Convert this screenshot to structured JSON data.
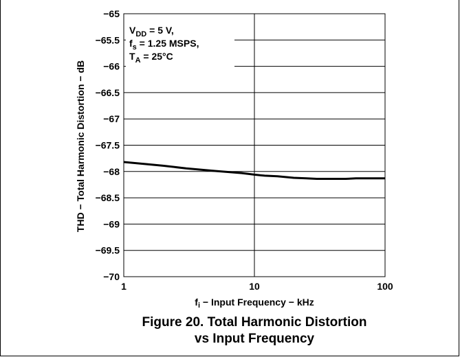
{
  "figure_caption": {
    "line1": "Figure 20. Total Harmonic Distortion",
    "line2": "vs Input Frequency"
  },
  "chart_data": {
    "type": "line",
    "xscale": "log",
    "xlim": [
      1,
      100
    ],
    "ylim": [
      -70,
      -65
    ],
    "xticks": [
      1,
      10,
      100
    ],
    "xtick_labels": [
      "1",
      "10",
      "100"
    ],
    "yticks": [
      -65,
      -65.5,
      -66,
      -66.5,
      -67,
      -67.5,
      -68,
      -68.5,
      -69,
      -69.5,
      -70
    ],
    "ytick_labels": [
      "−65",
      "−65.5",
      "−66",
      "−66.5",
      "−67",
      "−67.5",
      "−68",
      "−68.5",
      "−69",
      "−69.5",
      "−70"
    ],
    "xlabel": {
      "main": "f",
      "sub": "i",
      "rest": " − Input Frequency − kHz"
    },
    "ylabel": "THD − Total Harmonic Distortion − dB",
    "grid": true,
    "annotation": {
      "line1": {
        "main": "V",
        "sub": "DD",
        "rest": " = 5 V,"
      },
      "line2": {
        "main": "f",
        "sub": "s",
        "rest": " = 1.25 MSPS,"
      },
      "line3": {
        "main": "T",
        "sub": "A",
        "rest": " = 25°C"
      }
    },
    "series": [
      {
        "x": [
          1,
          1.5,
          2,
          3,
          5,
          8,
          10,
          12,
          15,
          20,
          25,
          30,
          40,
          50,
          60,
          80,
          100
        ],
        "y": [
          -67.82,
          -67.86,
          -67.89,
          -67.94,
          -67.99,
          -68.03,
          -68.06,
          -68.08,
          -68.09,
          -68.12,
          -68.13,
          -68.14,
          -68.14,
          -68.14,
          -68.13,
          -68.13,
          -68.13
        ]
      }
    ]
  }
}
